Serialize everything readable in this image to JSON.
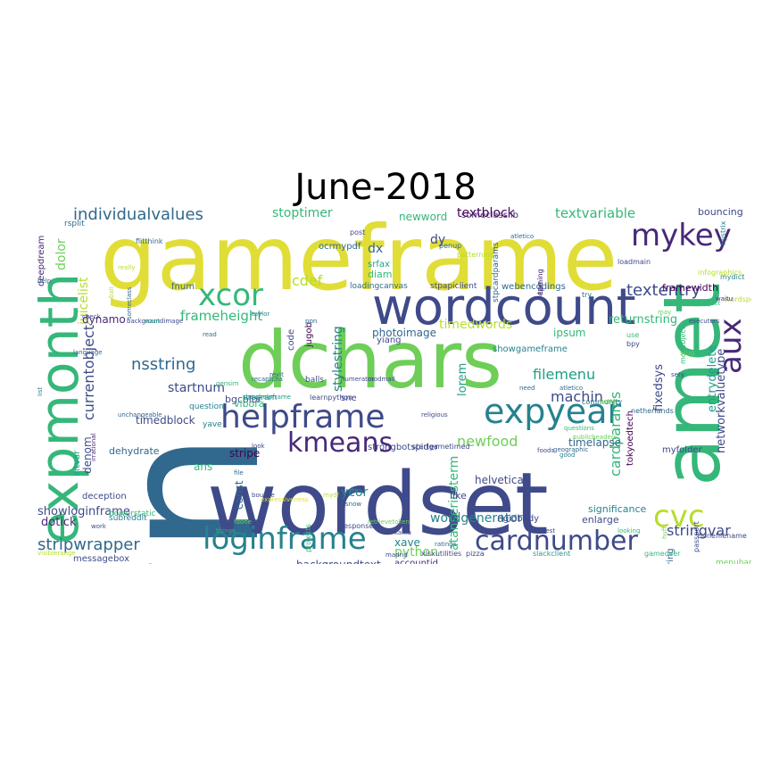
{
  "title": "June-2018",
  "palette": [
    "#440154",
    "#482878",
    "#3e4a89",
    "#31688e",
    "#26828e",
    "#1f9e89",
    "#35b779",
    "#6ece58",
    "#b5de2b",
    "#e1dd37"
  ],
  "words": [
    "wn",
    "gameframe",
    "wordset",
    "dchars",
    "amet",
    "wordcount",
    "expmonth",
    "helpframe",
    "expyear",
    "kmeans",
    "loginframe",
    "cardnumber",
    "xcor",
    "mykey",
    "cvc",
    "aux",
    "individualvalues",
    "textblock",
    "textvariable",
    "textentry",
    "stripwrapper",
    "newfood",
    "cardparams",
    "currentobject",
    "juicelist",
    "dolor",
    "nsstring",
    "frameheight",
    "cdef",
    "filemenu",
    "machin",
    "stoptimer",
    "startnum",
    "timedwords",
    "timedblock",
    "lorem",
    "stylestring",
    "fixedsys",
    "entrydelete",
    "networkvaluetype",
    "returnstring",
    "ipsum",
    "showloginframe",
    "dotick",
    "dehydrate",
    "denom",
    "dynamo",
    "stripe",
    "ycor",
    "atanseriesterm",
    "wordgenerator",
    "timelapse",
    "helvetica",
    "python",
    "stringvar",
    "backgroundtext",
    "xave",
    "linestring",
    "tokyoedtech",
    "bouncing",
    "framewidth",
    "dx",
    "dy",
    "diam",
    "newword",
    "photoimage",
    "bgcolor",
    "webencodings",
    "loadingcanvas",
    "stpapiclient",
    "ocrmypdf",
    "srfax",
    "someclasslib",
    "deepdream",
    "rsplit",
    "fnum",
    "accountid",
    "messagebox",
    "deception",
    "bowerstatic",
    "subreddit",
    "intvar",
    "vibora",
    "ans",
    "const",
    "code",
    "jugob",
    "sne",
    "yiang",
    "balls",
    "showgameframe",
    "strongbotspider",
    "rigidbody",
    "myfolder",
    "enlarge",
    "significance",
    "like",
    "use",
    "bpy",
    "movebjects",
    "infographics",
    "mydict",
    "hystrix",
    "passport",
    "wordsperminute",
    "slug",
    "try",
    "loadmain",
    "tpe",
    "learning",
    "patterning",
    "stpcardparams",
    "penup",
    "post",
    "flitthink",
    "really",
    "help",
    "check",
    "language",
    "list",
    "gensim",
    "question",
    "unchangeable",
    "irrational",
    "backgroundimage",
    "want",
    "taylor",
    "ppn",
    "read",
    "recaptcha",
    "program",
    "revit",
    "numerator",
    "learnpython",
    "modmail",
    "religious",
    "startgametimed",
    "xlsxutilities",
    "pizza",
    "slackclient",
    "menubar",
    "gameover",
    "donefilename",
    "fdone",
    "things",
    "responses",
    "ratings",
    "kafka",
    "madrid",
    "foods",
    "best",
    "questions",
    "publicheaders",
    "good",
    "geographic",
    "atletico",
    "community",
    "netherlands",
    "better",
    "need",
    "myproject",
    "may",
    "executors",
    "sety",
    "waitu",
    "huff",
    "looking",
    "bali",
    "someclass",
    "showhelpframe",
    "look",
    "file",
    "yave",
    "bounce",
    "expressiveness",
    "projects",
    "mydf",
    "snow",
    "retrievetoken",
    "ttk",
    "prog",
    "work",
    "visiblerange",
    "atletico"
  ]
}
